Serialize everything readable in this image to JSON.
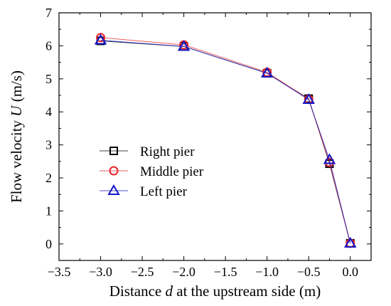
{
  "chart_data": {
    "type": "line",
    "xlabel_parts": [
      {
        "text": "Distance ",
        "italic": false
      },
      {
        "text": "d",
        "italic": true
      },
      {
        "text": " at the upstream side (m)",
        "italic": false
      }
    ],
    "ylabel_parts": [
      {
        "text": "Flow velocity ",
        "italic": false
      },
      {
        "text": "U",
        "italic": true
      },
      {
        "text": " (m/s)",
        "italic": false
      }
    ],
    "xlim": [
      -3.5,
      0.25
    ],
    "ylim": [
      -0.5,
      7
    ],
    "xticks": [
      -3.5,
      -3.0,
      -2.5,
      -2.0,
      -1.5,
      -1.0,
      -0.5,
      0.0
    ],
    "xtick_labels": [
      "−3.5",
      "−3.0",
      "−2.5",
      "−2.0",
      "−1.5",
      "−1.0",
      "−0.5",
      "0.0"
    ],
    "yticks": [
      0,
      1,
      2,
      3,
      4,
      5,
      6,
      7
    ],
    "ytick_labels": [
      "0",
      "1",
      "2",
      "3",
      "4",
      "5",
      "6",
      "7"
    ],
    "grid": false,
    "legend_position": "center-left",
    "x": [
      -3.0,
      -2.0,
      -1.0,
      -0.5,
      -0.25,
      0.0
    ],
    "series": [
      {
        "name": "Right pier",
        "values": [
          6.15,
          5.98,
          5.17,
          4.4,
          2.43,
          0.02
        ],
        "marker": "square",
        "color": "#000000"
      },
      {
        "name": "Middle pier",
        "values": [
          6.25,
          6.03,
          5.2,
          4.38,
          2.47,
          0.02
        ],
        "marker": "circle",
        "color": "#e8262a"
      },
      {
        "name": "Left pier",
        "values": [
          6.17,
          5.98,
          5.17,
          4.37,
          2.55,
          0.02
        ],
        "marker": "triangle",
        "color": "#1515c8"
      }
    ]
  }
}
